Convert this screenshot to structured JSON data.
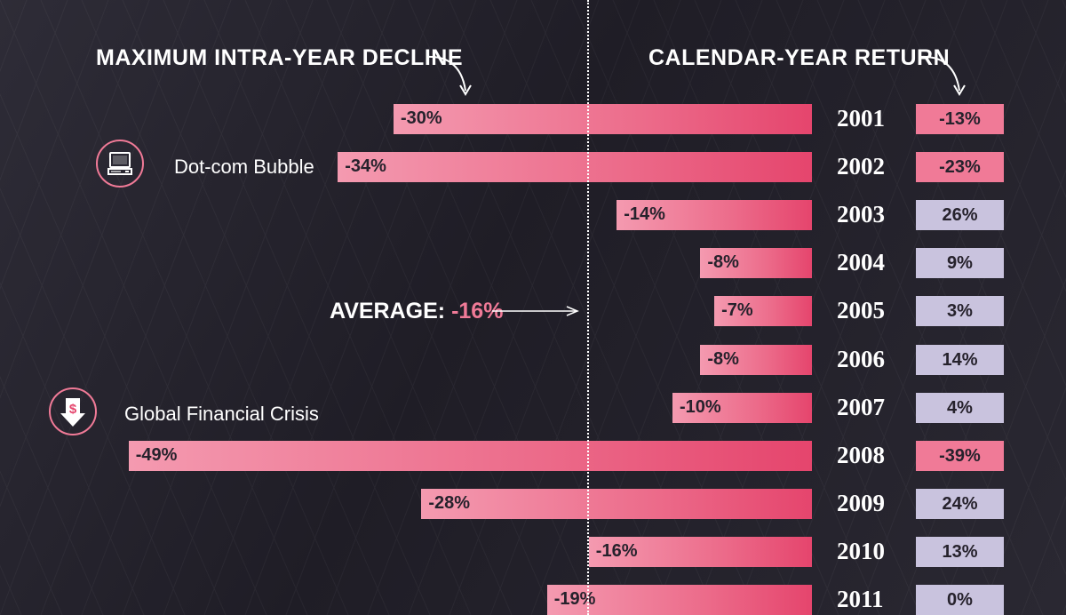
{
  "headers": {
    "left": "MAXIMUM INTRA-YEAR DECLINE",
    "right": "CALENDAR-YEAR RETURN"
  },
  "average": {
    "label": "AVERAGE:",
    "value": "-16%"
  },
  "events": [
    {
      "label": "Dot-com Bubble",
      "icon": "computer-icon"
    },
    {
      "label": "Global Financial Crisis",
      "icon": "dollar-down-arrow-icon"
    }
  ],
  "colors": {
    "decline_bar": "#ec6b8a",
    "negative_return": "#f07a97",
    "positive_return": "#c9c3de"
  },
  "chart_data": {
    "type": "bar",
    "title": "",
    "categories": [
      "2001",
      "2002",
      "2003",
      "2004",
      "2005",
      "2006",
      "2007",
      "2008",
      "2009",
      "2010",
      "2011"
    ],
    "series": [
      {
        "name": "MAXIMUM INTRA-YEAR DECLINE",
        "values": [
          -30,
          -34,
          -14,
          -8,
          -7,
          -8,
          -10,
          -49,
          -28,
          -16,
          -19
        ]
      },
      {
        "name": "CALENDAR-YEAR RETURN",
        "values": [
          -13,
          -23,
          26,
          9,
          3,
          14,
          4,
          -39,
          24,
          13,
          0
        ]
      }
    ],
    "decline_labels": [
      "-30%",
      "-34%",
      "-14%",
      "-8%",
      "-7%",
      "-8%",
      "-10%",
      "-49%",
      "-28%",
      "-16%",
      "-19%"
    ],
    "return_labels": [
      "-13%",
      "-23%",
      "26%",
      "9%",
      "3%",
      "14%",
      "4%",
      "-39%",
      "24%",
      "13%",
      "0%"
    ],
    "average_line": -16
  }
}
